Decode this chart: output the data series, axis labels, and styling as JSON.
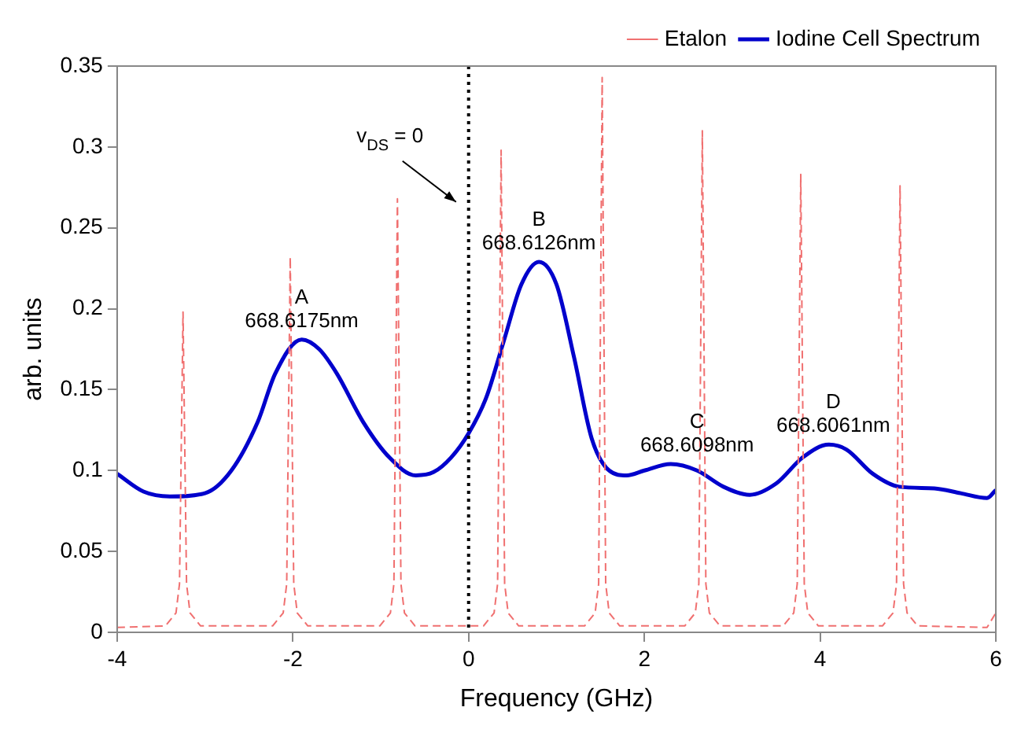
{
  "chart_data": {
    "type": "line",
    "xlabel": "Frequency (GHz)",
    "ylabel": "arb. units",
    "xlim": [
      -4,
      6
    ],
    "ylim": [
      0,
      0.35
    ],
    "xticks": [
      -4,
      -2,
      0,
      2,
      4,
      6
    ],
    "yticks": [
      0,
      0.05,
      0.1,
      0.15,
      0.2,
      0.25,
      0.3,
      0.35
    ],
    "grid": false,
    "legend": "top right",
    "marker": "none",
    "series": [
      {
        "name": "Etalon",
        "color": "#f07070",
        "line_style": "dashed",
        "x": [
          -4,
          -3.45,
          -3.33,
          -3.29,
          -3.25,
          -3.21,
          -3.17,
          -3.05,
          -2.23,
          -2.11,
          -2.07,
          -2.03,
          -1.99,
          -1.95,
          -1.83,
          -1.01,
          -0.89,
          -0.85,
          -0.81,
          -0.77,
          -0.73,
          -0.61,
          0.17,
          0.29,
          0.33,
          0.37,
          0.41,
          0.45,
          0.57,
          1.32,
          1.44,
          1.48,
          1.52,
          1.56,
          1.6,
          1.72,
          2.46,
          2.58,
          2.62,
          2.66,
          2.7,
          2.74,
          2.86,
          3.58,
          3.7,
          3.74,
          3.78,
          3.82,
          3.86,
          3.98,
          4.71,
          4.83,
          4.87,
          4.91,
          4.95,
          4.99,
          5.11,
          5.9,
          6
        ],
        "values": [
          0.003,
          0.004,
          0.012,
          0.03,
          0.198,
          0.03,
          0.012,
          0.004,
          0.004,
          0.012,
          0.03,
          0.232,
          0.03,
          0.012,
          0.004,
          0.004,
          0.012,
          0.03,
          0.268,
          0.03,
          0.012,
          0.004,
          0.004,
          0.012,
          0.03,
          0.298,
          0.03,
          0.012,
          0.004,
          0.004,
          0.012,
          0.03,
          0.343,
          0.03,
          0.012,
          0.004,
          0.004,
          0.012,
          0.03,
          0.31,
          0.03,
          0.012,
          0.004,
          0.004,
          0.012,
          0.03,
          0.283,
          0.03,
          0.012,
          0.004,
          0.004,
          0.012,
          0.03,
          0.276,
          0.03,
          0.012,
          0.004,
          0.003,
          0.012
        ]
      },
      {
        "name": "Iodine Cell Spectrum",
        "color": "#0000cc",
        "line_style": "solid",
        "x": [
          -4,
          -3.7,
          -3.4,
          -3.0,
          -2.7,
          -2.4,
          -2.2,
          -1.9,
          -1.7,
          -1.5,
          -1.2,
          -0.9,
          -0.6,
          -0.4,
          -0.2,
          0,
          0.2,
          0.4,
          0.6,
          0.8,
          1.0,
          1.2,
          1.4,
          1.6,
          1.8,
          2.0,
          2.3,
          2.6,
          2.9,
          3.2,
          3.5,
          3.8,
          4.1,
          4.3,
          4.6,
          4.9,
          5.3,
          5.6,
          5.9,
          6
        ],
        "values": [
          0.098,
          0.087,
          0.084,
          0.086,
          0.1,
          0.13,
          0.16,
          0.181,
          0.175,
          0.16,
          0.13,
          0.108,
          0.097,
          0.099,
          0.108,
          0.123,
          0.145,
          0.18,
          0.215,
          0.229,
          0.215,
          0.17,
          0.12,
          0.1,
          0.097,
          0.1,
          0.104,
          0.1,
          0.09,
          0.085,
          0.092,
          0.108,
          0.116,
          0.113,
          0.098,
          0.09,
          0.089,
          0.086,
          0.083,
          0.088
        ]
      }
    ],
    "ref_lines": [
      {
        "axis": "x",
        "value": 0,
        "color": "#000000",
        "line_style": "dotted"
      }
    ],
    "annotations": [
      "v$_{DS}$ = 0",
      {
        "text": "A\n668.6175nm",
        "x": -1.9,
        "y": 0.181
      },
      {
        "text": "B\n668.6126nm",
        "x": 0.8,
        "y": 0.229
      },
      {
        "text": "C\n668.6098nm",
        "x": 2.6,
        "y": 0.104
      },
      {
        "text": "D\n668.6061nm",
        "x": 4.15,
        "y": 0.116
      }
    ]
  }
}
